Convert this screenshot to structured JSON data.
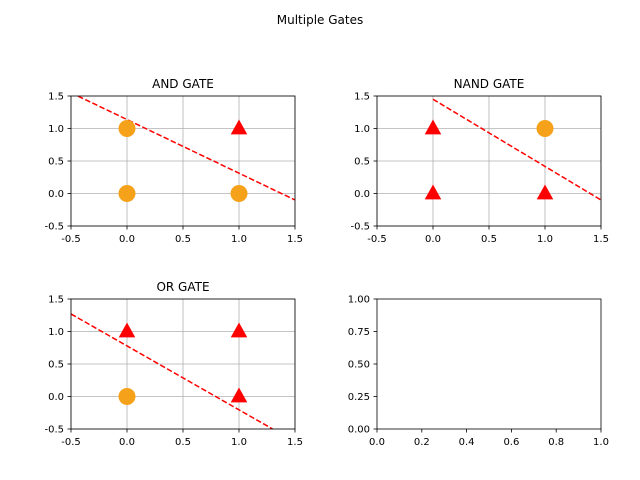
{
  "figure": {
    "suptitle": "Multiple Gates"
  },
  "colors": {
    "marker_zero": "#f5a11a",
    "marker_one": "#ff0000",
    "boundary": "#ff0000",
    "grid": "#b0b0b0",
    "spine": "#000000"
  },
  "chart_data": [
    {
      "type": "scatter",
      "title": "AND GATE",
      "xlim": [
        -0.5,
        1.5
      ],
      "ylim": [
        -0.5,
        1.5
      ],
      "xticks": [
        "-0.5",
        "0.0",
        "0.5",
        "1.0",
        "1.5"
      ],
      "yticks": [
        "-0.5",
        "0.0",
        "0.5",
        "1.0",
        "1.5"
      ],
      "grid": true,
      "points": [
        {
          "x": 0,
          "y": 0,
          "class": 0,
          "marker": "circle"
        },
        {
          "x": 0,
          "y": 1,
          "class": 0,
          "marker": "circle"
        },
        {
          "x": 1,
          "y": 0,
          "class": 0,
          "marker": "circle"
        },
        {
          "x": 1,
          "y": 1,
          "class": 1,
          "marker": "triangle"
        }
      ],
      "boundary_line": {
        "x": [
          -0.5,
          1.5
        ],
        "y": [
          1.55,
          -0.1
        ],
        "style": "dashed"
      }
    },
    {
      "type": "scatter",
      "title": "NAND GATE",
      "xlim": [
        -0.5,
        1.5
      ],
      "ylim": [
        -0.5,
        1.5
      ],
      "xticks": [
        "-0.5",
        "0.0",
        "0.5",
        "1.0",
        "1.5"
      ],
      "yticks": [
        "-0.5",
        "0.0",
        "0.5",
        "1.0",
        "1.5"
      ],
      "grid": true,
      "points": [
        {
          "x": 0,
          "y": 0,
          "class": 1,
          "marker": "triangle"
        },
        {
          "x": 0,
          "y": 1,
          "class": 1,
          "marker": "triangle"
        },
        {
          "x": 1,
          "y": 0,
          "class": 1,
          "marker": "triangle"
        },
        {
          "x": 1,
          "y": 1,
          "class": 0,
          "marker": "circle"
        }
      ],
      "boundary_line": {
        "x": [
          0.0,
          1.5
        ],
        "y": [
          1.45,
          -0.1
        ],
        "style": "dashed"
      }
    },
    {
      "type": "scatter",
      "title": "OR GATE",
      "xlim": [
        -0.5,
        1.5
      ],
      "ylim": [
        -0.5,
        1.5
      ],
      "xticks": [
        "-0.5",
        "0.0",
        "0.5",
        "1.0",
        "1.5"
      ],
      "yticks": [
        "-0.5",
        "0.0",
        "0.5",
        "1.0",
        "1.5"
      ],
      "grid": true,
      "points": [
        {
          "x": 0,
          "y": 0,
          "class": 0,
          "marker": "circle"
        },
        {
          "x": 0,
          "y": 1,
          "class": 1,
          "marker": "triangle"
        },
        {
          "x": 1,
          "y": 0,
          "class": 1,
          "marker": "triangle"
        },
        {
          "x": 1,
          "y": 1,
          "class": 1,
          "marker": "triangle"
        }
      ],
      "boundary_line": {
        "x": [
          -0.5,
          1.3
        ],
        "y": [
          1.27,
          -0.5
        ],
        "style": "dashed"
      }
    },
    {
      "type": "scatter",
      "title": "",
      "xlim": [
        0.0,
        1.0
      ],
      "ylim": [
        0.0,
        1.0
      ],
      "xticks": [
        "0.0",
        "0.2",
        "0.4",
        "0.6",
        "0.8",
        "1.0"
      ],
      "yticks": [
        "0.00",
        "0.25",
        "0.50",
        "0.75",
        "1.00"
      ],
      "grid": false,
      "points": [],
      "boundary_line": null
    }
  ]
}
